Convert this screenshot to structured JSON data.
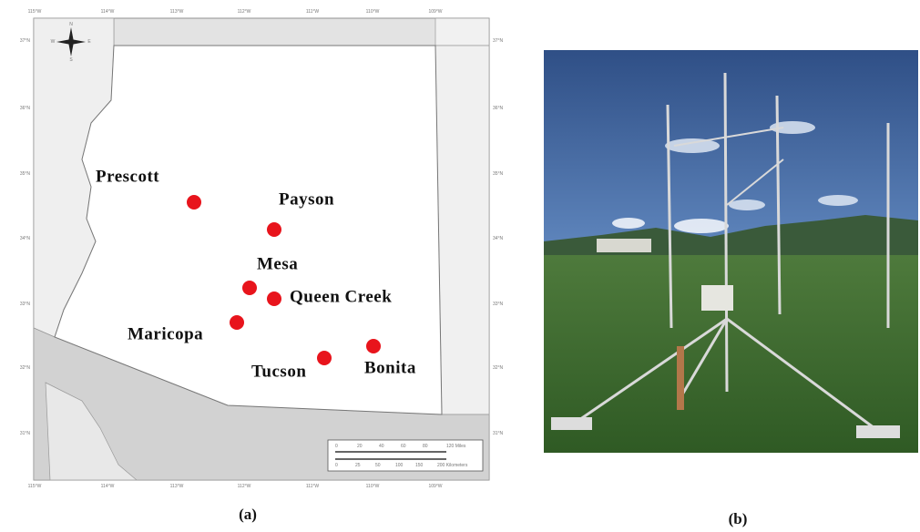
{
  "map": {
    "label": "(a)",
    "cities": [
      "Prescott",
      "Payson",
      "Mesa",
      "Queen Creek",
      "Maricopa",
      "Tucson",
      "Bonita"
    ],
    "graticule": {
      "top": [
        "115°W",
        "114°W",
        "113°W",
        "112°W",
        "111°W",
        "110°W",
        "109°W"
      ],
      "left": [
        "37°N",
        "36°N",
        "35°N",
        "34°N",
        "33°N",
        "32°N",
        "31°N"
      ]
    },
    "compass": [
      "N",
      "S",
      "E",
      "W"
    ],
    "scale_bar": {
      "miles": [
        "0",
        "20",
        "40",
        "60",
        "80",
        "120 Miles"
      ],
      "kilometers": [
        "0",
        "25",
        "50",
        "100",
        "150",
        "200 Kilometers"
      ]
    }
  },
  "photo": {
    "label": "(b)"
  }
}
